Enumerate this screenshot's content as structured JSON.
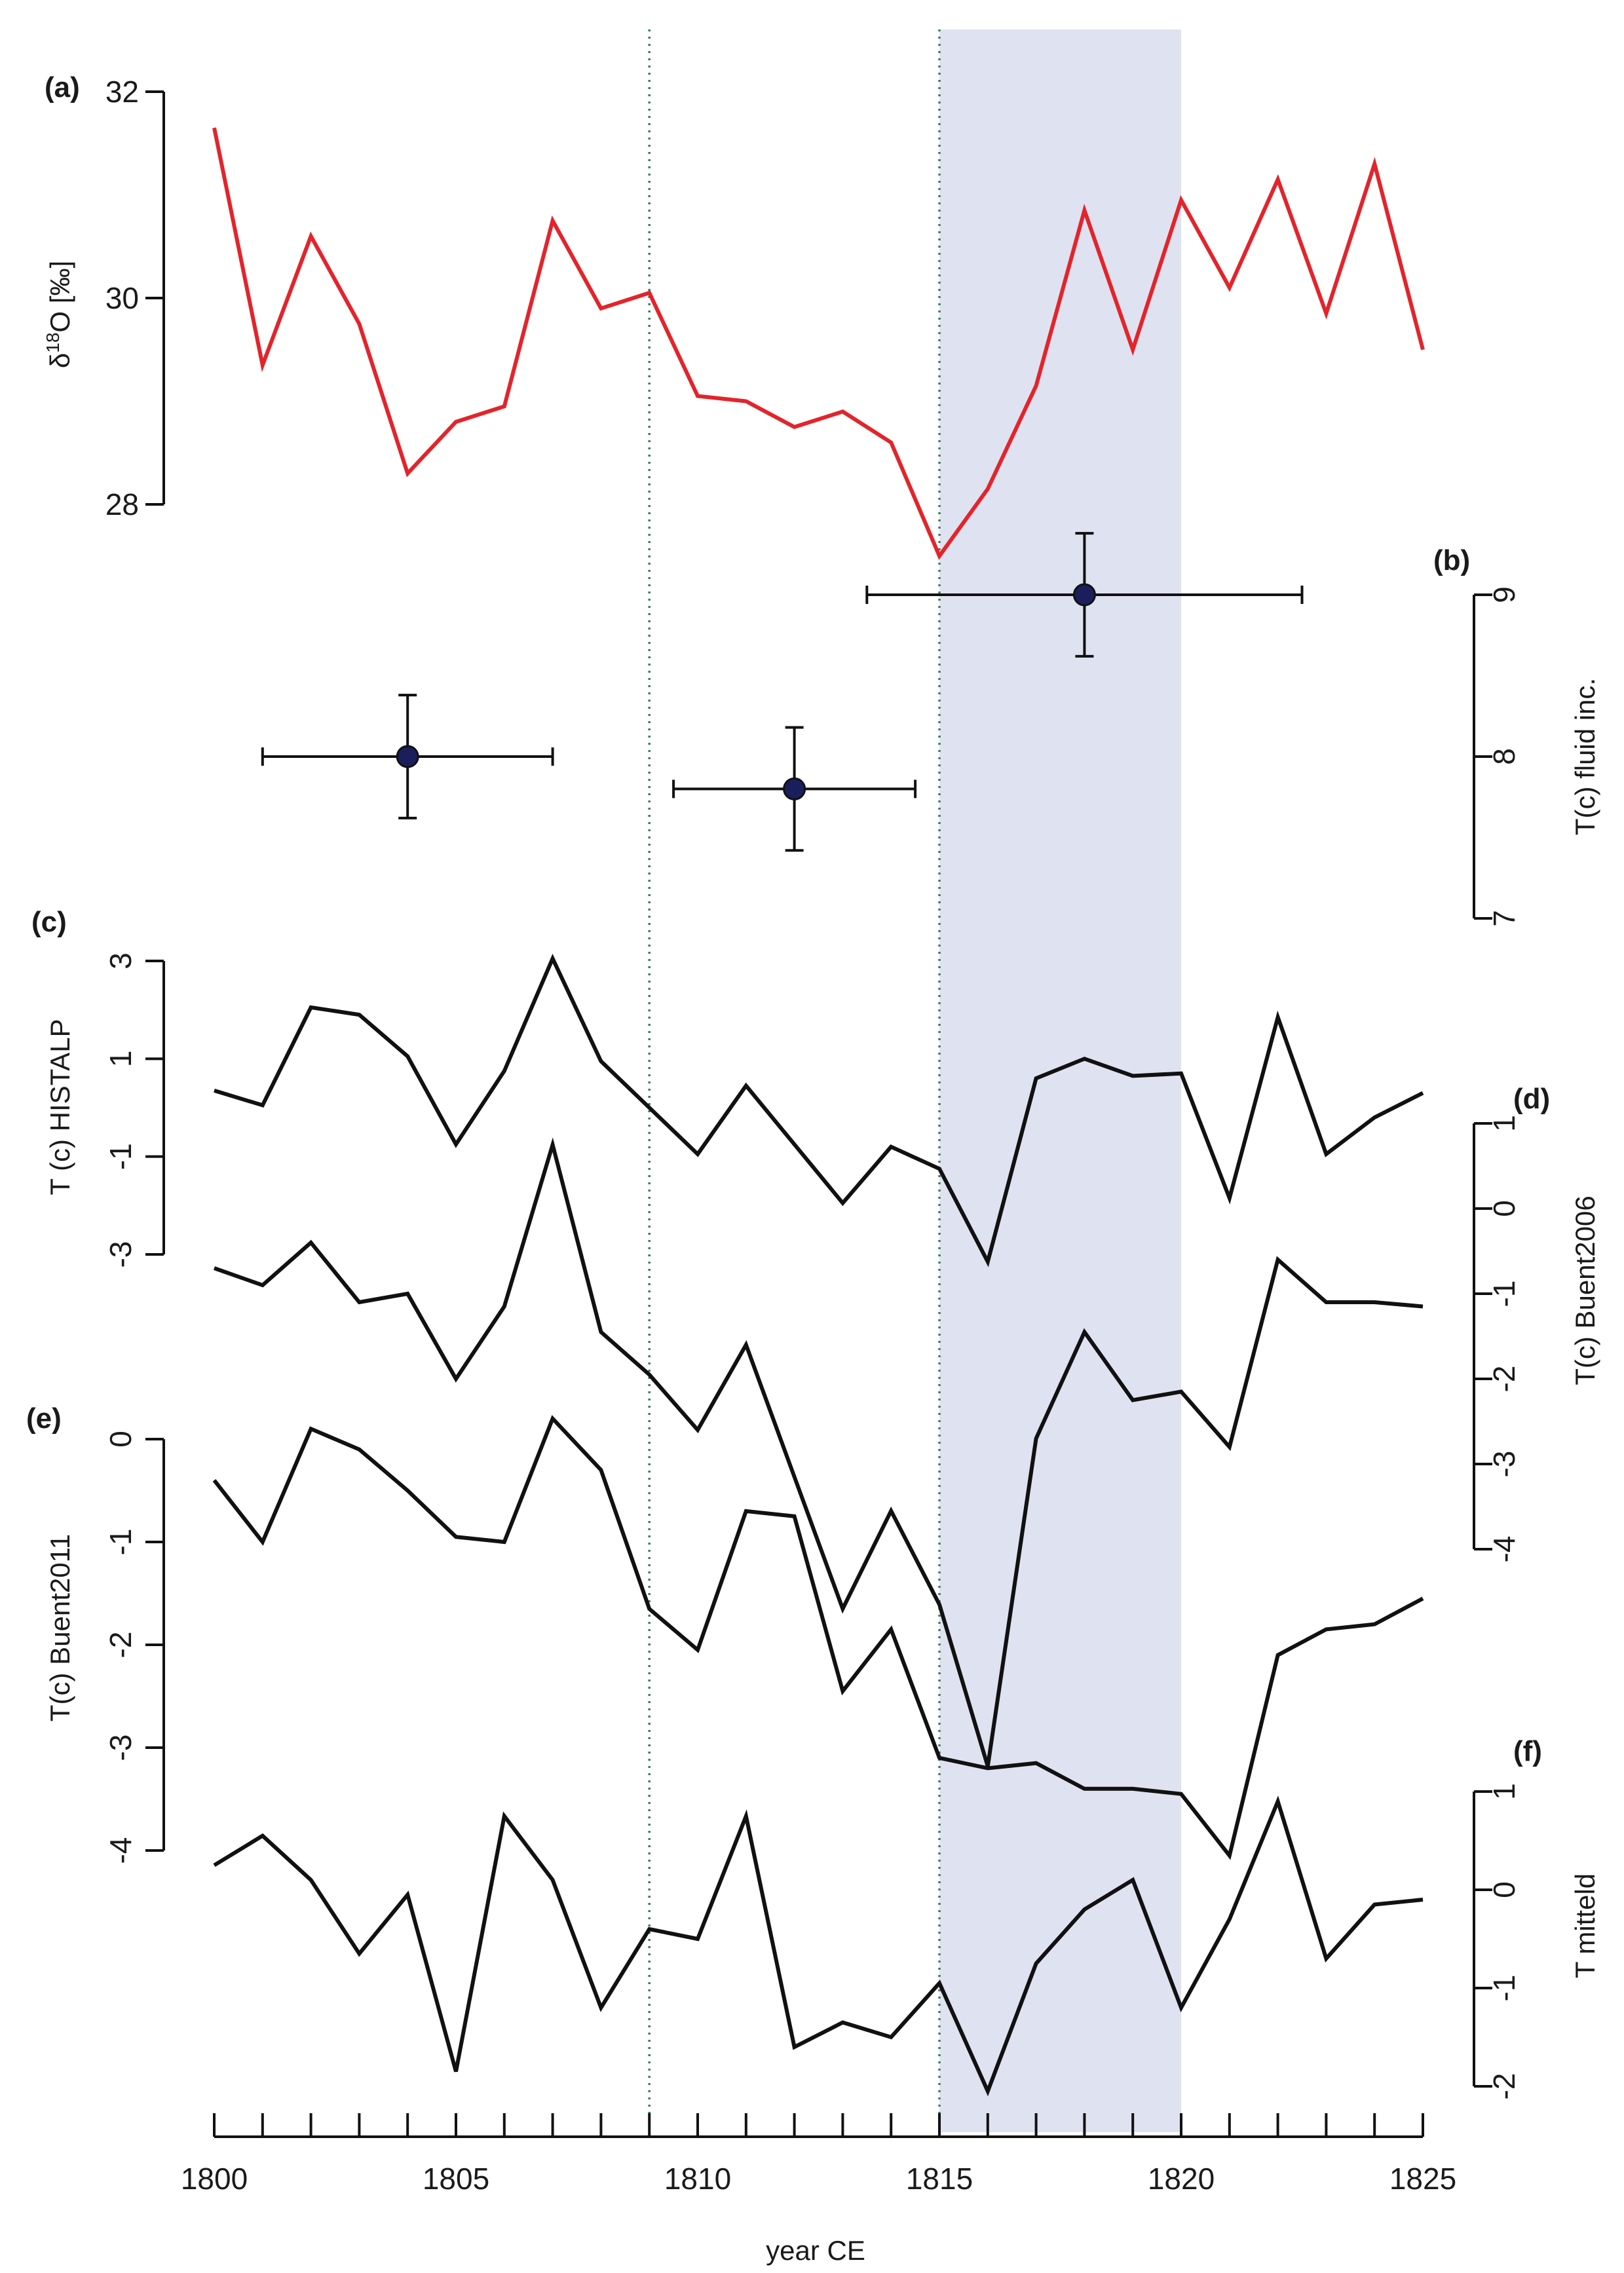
{
  "chart_data": {
    "type": "line",
    "xlabel": "year CE",
    "xlim": [
      1800,
      1825
    ],
    "x_ticks": [
      "1800",
      "1805",
      "1810",
      "1815",
      "1820",
      "1825"
    ],
    "years": [
      1800,
      1801,
      1802,
      1803,
      1804,
      1805,
      1806,
      1807,
      1808,
      1809,
      1810,
      1811,
      1812,
      1813,
      1814,
      1815,
      1816,
      1817,
      1818,
      1819,
      1820,
      1821,
      1822,
      1823,
      1824,
      1825
    ],
    "vlines": [
      1809,
      1815
    ],
    "shaded_range": [
      1815,
      1820
    ],
    "colors": {
      "red": "#e3242b",
      "black": "#111111",
      "marker": "#1a1f5c",
      "shade": "#dfe2f0",
      "vline": "#3b7d5a"
    },
    "panels": [
      {
        "id": "a",
        "tag": "(a)",
        "type": "line",
        "color": "#e3242b",
        "ylabel": "δ18O [‰]",
        "ylabel_base": "δ",
        "ylabel_sup": "18",
        "ylabel_rest": "O [‰]",
        "axis": "left",
        "ylim": [
          28,
          32
        ],
        "y_ticks": [
          "28",
          "30",
          "32"
        ],
        "values": [
          31.65,
          29.35,
          30.6,
          29.75,
          28.3,
          28.8,
          28.95,
          30.75,
          29.9,
          30.05,
          29.05,
          29.0,
          28.75,
          28.9,
          28.6,
          27.5,
          28.15,
          29.15,
          30.85,
          29.5,
          30.95,
          30.1,
          31.15,
          29.85,
          31.3,
          29.5
        ]
      },
      {
        "id": "b",
        "tag": "(b)",
        "type": "scatter",
        "color": "#1a1f5c",
        "ylabel": "T(c) fluid inc.",
        "axis": "right",
        "ylim": [
          7,
          9
        ],
        "y_ticks": [
          "7",
          "8",
          "9"
        ],
        "points": [
          {
            "x": 1804,
            "y": 8.0,
            "xerr": 3.0,
            "yerr": 0.38
          },
          {
            "x": 1812,
            "y": 7.8,
            "xerr": 2.5,
            "yerr": 0.38
          },
          {
            "x": 1818,
            "y": 9.0,
            "xerr": 4.5,
            "yerr": 0.38
          }
        ]
      },
      {
        "id": "c",
        "tag": "(c)",
        "type": "line",
        "color": "#111111",
        "ylabel": "T (c) HISTALP",
        "axis": "left",
        "ylim": [
          -3,
          3
        ],
        "y_ticks": [
          "-3",
          "-1",
          "1",
          "3"
        ],
        "values": [
          0.35,
          0.05,
          2.05,
          1.9,
          1.05,
          -0.75,
          0.75,
          3.05,
          0.95,
          0.0,
          -0.95,
          0.45,
          -0.75,
          -1.95,
          -0.8,
          -1.25,
          -3.15,
          0.6,
          1.0,
          0.65,
          0.7,
          -1.85,
          1.85,
          -0.95,
          -0.2,
          0.3
        ]
      },
      {
        "id": "d",
        "tag": "(d)",
        "type": "line",
        "color": "#111111",
        "ylabel": "T(c) Buent2006",
        "axis": "right",
        "ylim": [
          -4,
          1
        ],
        "y_ticks": [
          "-4",
          "-3",
          "-2",
          "-1",
          "0",
          "1"
        ],
        "values": [
          -0.7,
          -0.9,
          -0.4,
          -1.1,
          -1.0,
          -2.0,
          -1.15,
          0.75,
          -1.45,
          -1.95,
          -2.6,
          -1.6,
          -3.15,
          -4.7,
          -3.55,
          -4.65,
          -6.55,
          -2.7,
          -1.45,
          -2.25,
          -2.15,
          -2.8,
          -0.6,
          -1.1,
          -1.1,
          -1.15
        ]
      },
      {
        "id": "e",
        "tag": "(e)",
        "type": "line",
        "color": "#111111",
        "ylabel": "T(c) Buent2011",
        "axis": "left",
        "ylim": [
          -4,
          0
        ],
        "y_ticks": [
          "-4",
          "-3",
          "-2",
          "-1",
          "0"
        ],
        "values": [
          -0.4,
          -1.0,
          0.1,
          -0.1,
          -0.5,
          -0.95,
          -1.0,
          0.2,
          -0.3,
          -1.65,
          -2.05,
          -0.7,
          -0.75,
          -2.45,
          -1.85,
          -3.1,
          -3.2,
          -3.15,
          -3.4,
          -3.4,
          -3.45,
          -4.05,
          -2.1,
          -1.85,
          -1.8,
          -1.55
        ]
      },
      {
        "id": "f",
        "tag": "(f)",
        "type": "line",
        "color": "#111111",
        "ylabel": "T mitteld",
        "axis": "right",
        "ylim": [
          -2,
          1
        ],
        "y_ticks": [
          "-2",
          "-1",
          "0",
          "1"
        ],
        "values": [
          0.25,
          0.55,
          0.1,
          -0.65,
          -0.05,
          -1.85,
          0.75,
          0.1,
          -1.2,
          -0.4,
          -0.5,
          0.75,
          -1.6,
          -1.35,
          -1.5,
          -0.95,
          -2.05,
          -0.75,
          -0.2,
          0.1,
          -1.2,
          -0.3,
          0.9,
          -0.7,
          -0.15,
          -0.1
        ]
      }
    ]
  }
}
